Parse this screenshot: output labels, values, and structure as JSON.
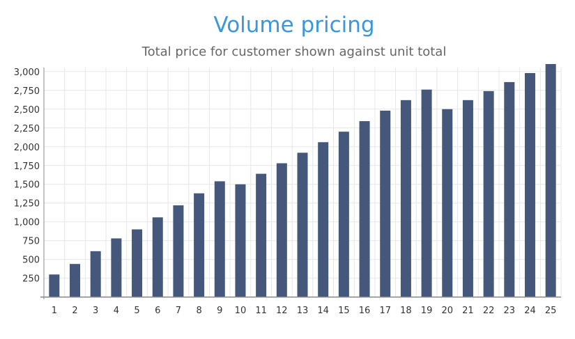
{
  "chart_data": {
    "type": "bar",
    "title": "Volume pricing",
    "subtitle": "Total price for customer shown against unit total",
    "xlabel": "",
    "ylabel": "",
    "categories": [
      "1",
      "2",
      "3",
      "4",
      "5",
      "6",
      "7",
      "8",
      "9",
      "10",
      "11",
      "12",
      "13",
      "14",
      "15",
      "16",
      "17",
      "18",
      "19",
      "20",
      "21",
      "22",
      "23",
      "24",
      "25"
    ],
    "values": [
      300,
      440,
      610,
      780,
      900,
      1060,
      1220,
      1380,
      1540,
      1500,
      1640,
      1780,
      1920,
      2060,
      2200,
      2340,
      2480,
      2620,
      2760,
      2500,
      2620,
      2740,
      2860,
      2980,
      3100
    ],
    "ylim": [
      0,
      3100
    ],
    "yticks": [
      250,
      500,
      750,
      1000,
      1250,
      1500,
      1750,
      2000,
      2250,
      2500,
      2750,
      3000
    ],
    "ytick_labels": [
      "250",
      "500",
      "750",
      "1,000",
      "1,250",
      "1,500",
      "1,750",
      "2,000",
      "2,250",
      "2,500",
      "2,750",
      "3,000"
    ],
    "grid": true,
    "colors": {
      "bar": "#45577a",
      "title": "#3a97dc",
      "grid": "#e6e6e6",
      "axis": "#888888"
    }
  }
}
